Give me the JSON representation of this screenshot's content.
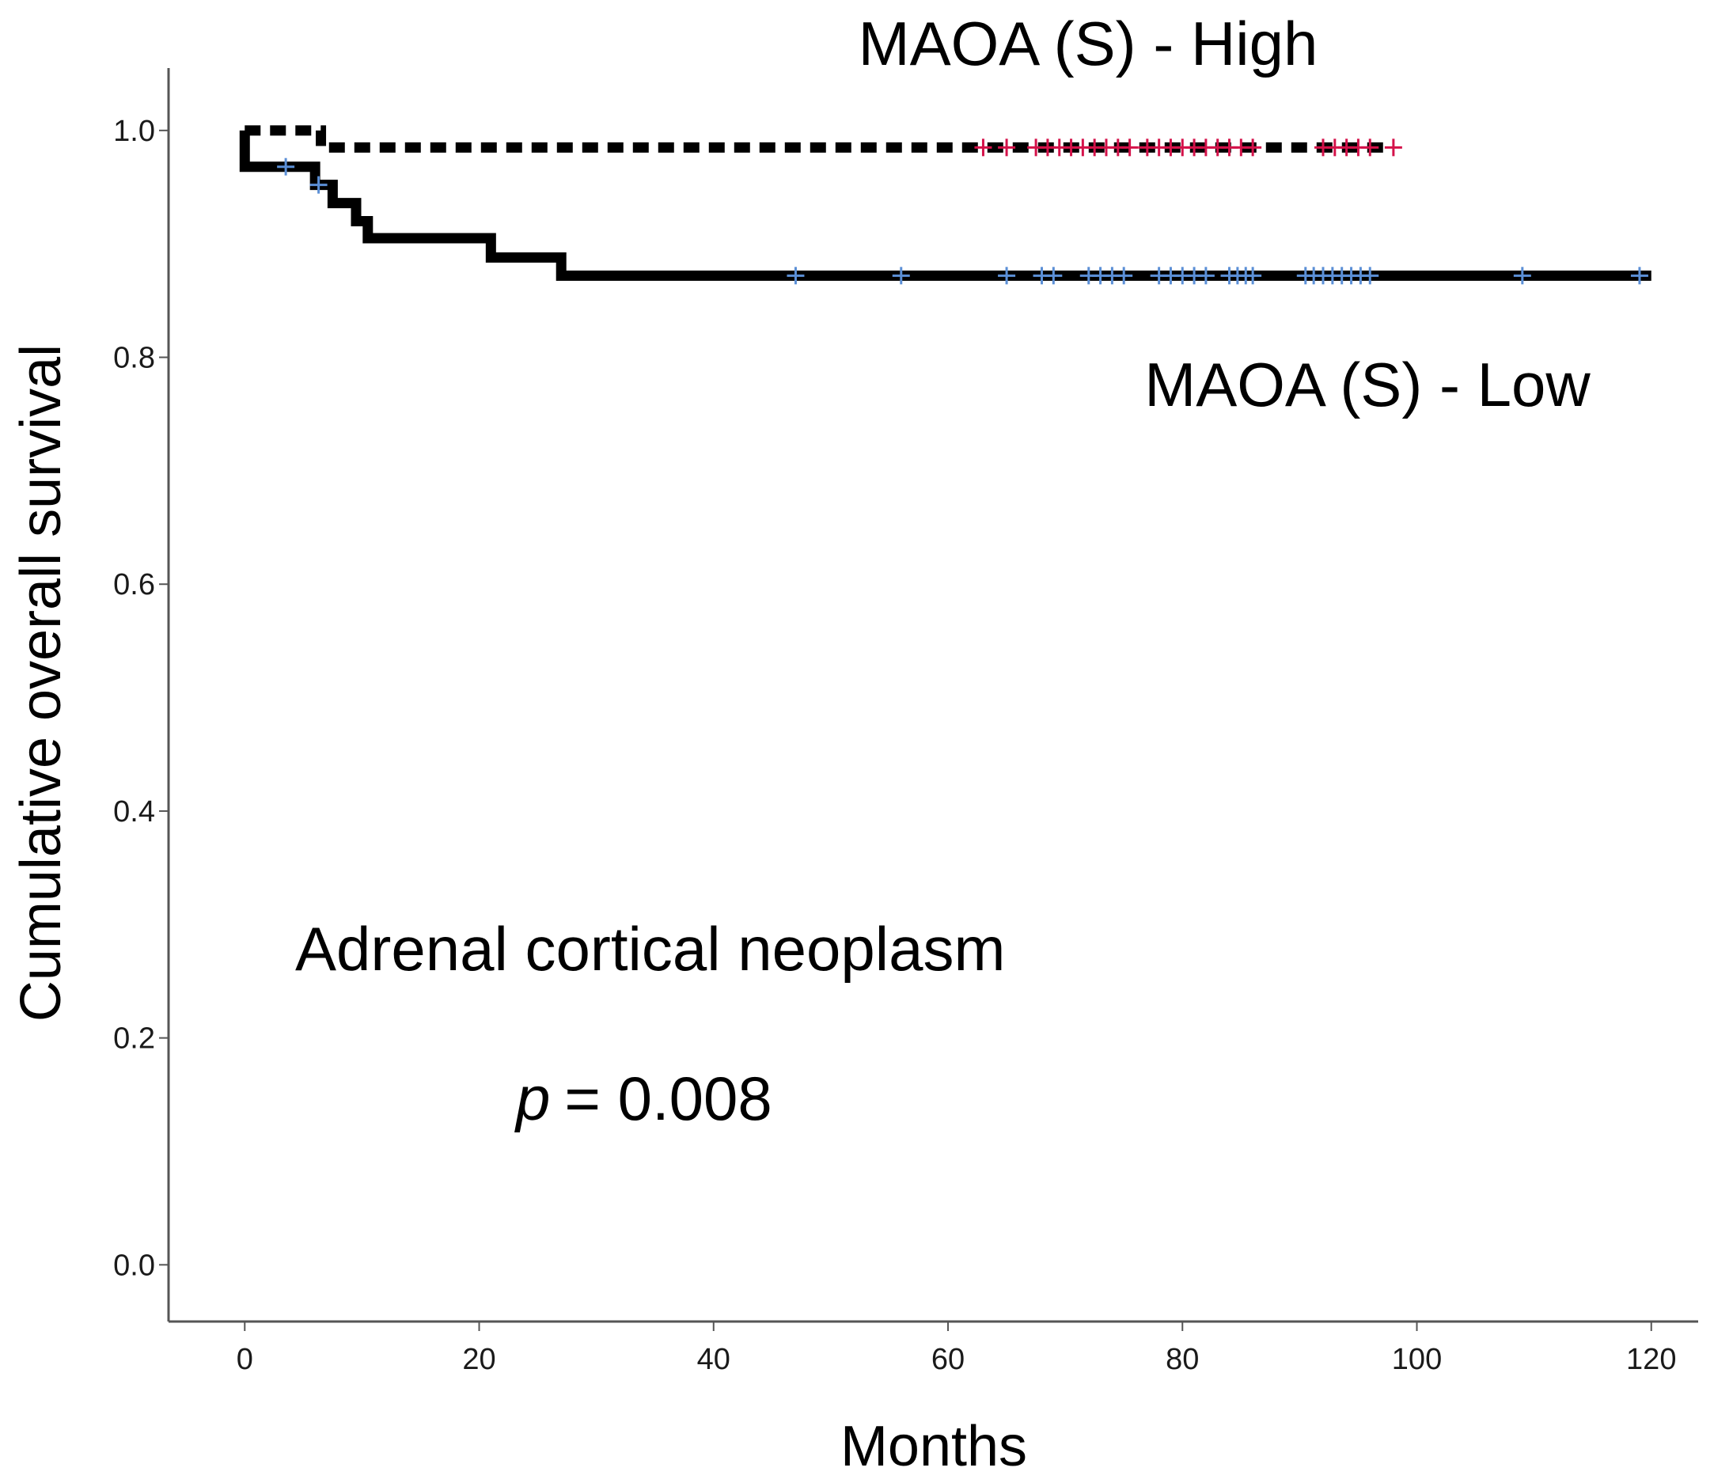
{
  "colors": {
    "curve": "#000000",
    "axis": "#555555",
    "censor_high": "#d4124a",
    "censor_low": "#5b8fd6"
  },
  "chart_data": {
    "type": "line",
    "subtype": "kaplan-meier",
    "title": "Adrenal cortical neoplasm",
    "xlabel": "Months",
    "ylabel": "Cumulative overall survival",
    "xlim": [
      -6.5,
      124
    ],
    "ylim": [
      -0.05,
      1.055
    ],
    "xticks": [
      0,
      20,
      40,
      60,
      80,
      100,
      120
    ],
    "yticks": [
      0.0,
      0.2,
      0.4,
      0.6,
      0.8,
      1.0
    ],
    "xtick_labels": [
      "0",
      "20",
      "40",
      "60",
      "80",
      "100",
      "120"
    ],
    "ytick_labels": [
      "0.0",
      "0.2",
      "0.4",
      "0.6",
      "0.8",
      "1.0"
    ],
    "grid": false,
    "annotation": {
      "p_symbol": "p",
      "p_text": "= 0.008"
    },
    "series": [
      {
        "name": "MAOA (S) - High",
        "line_style": "dashed",
        "steps": [
          [
            0,
            1.0
          ],
          [
            6.5,
            0.985
          ],
          [
            98,
            0.985
          ]
        ],
        "censored": [
          63,
          65,
          67.5,
          68.5,
          69.5,
          70.5,
          71.5,
          72.5,
          73.5,
          74.5,
          75.5,
          77,
          78,
          79,
          80,
          81,
          82,
          83,
          84,
          85,
          86,
          92,
          93,
          94,
          95,
          96,
          98
        ]
      },
      {
        "name": "MAOA (S) - Low",
        "line_style": "solid",
        "steps": [
          [
            0,
            0.968
          ],
          [
            6,
            0.952
          ],
          [
            7.5,
            0.936
          ],
          [
            9.5,
            0.92
          ],
          [
            10.5,
            0.905
          ],
          [
            21,
            0.888
          ],
          [
            27,
            0.872
          ],
          [
            120,
            0.872
          ]
        ],
        "censored_points": [
          [
            3.5,
            0.968
          ],
          [
            6.3,
            0.952
          ]
        ],
        "censored": [
          47,
          56,
          65,
          68,
          69,
          72,
          73,
          74,
          75,
          78,
          79,
          80,
          81,
          82,
          84,
          84.7,
          85.4,
          86,
          90.5,
          91.2,
          92,
          92.8,
          93.6,
          94.4,
          95.2,
          96,
          109,
          119
        ]
      }
    ]
  }
}
